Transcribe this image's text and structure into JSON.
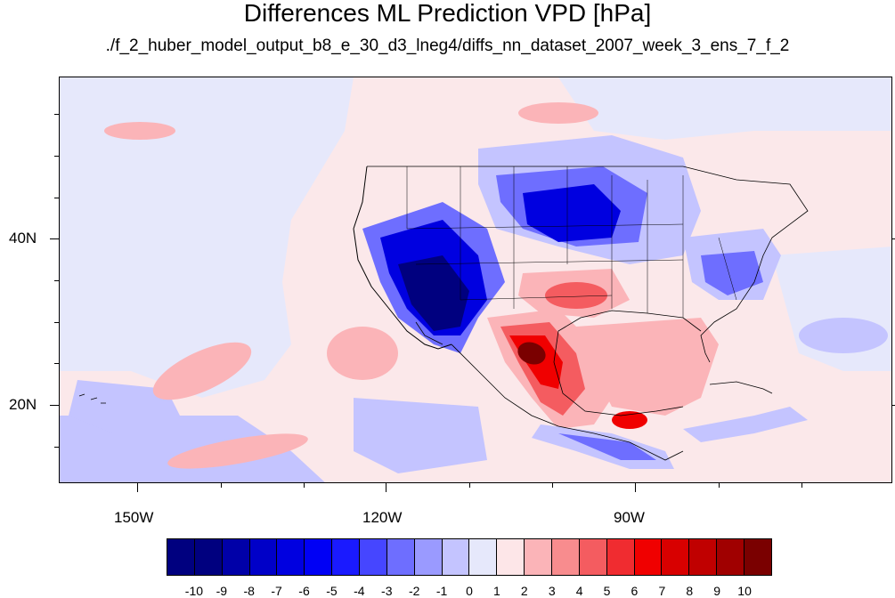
{
  "title": "Differences ML Prediction VPD [hPa]",
  "subtitle": "./f_2_huber_model_output_b8_e_30_d3_lneg4/diffs_nn_dataset_2007_week_3_ens_7_f_2",
  "axes": {
    "lat_labels": [
      "40N",
      "20N"
    ],
    "lon_labels": [
      "150W",
      "120W",
      "90W"
    ]
  },
  "colorbar": {
    "labels": [
      "-10",
      "-9",
      "-8",
      "-7",
      "-6",
      "-5",
      "-4",
      "-3",
      "-2",
      "-1",
      "0",
      "1",
      "2",
      "3",
      "4",
      "5",
      "6",
      "7",
      "8",
      "9",
      "10"
    ],
    "colors": [
      "#00007f",
      "#0000a8",
      "#0000c8",
      "#0000e0",
      "#0000f5",
      "#1a1aff",
      "#4646ff",
      "#6e6eff",
      "#9a9aff",
      "#c4c4ff",
      "#e6e8fb",
      "#fde6e8",
      "#fbb4b8",
      "#f88c8e",
      "#f45c60",
      "#f02c30",
      "#f00000",
      "#d80000",
      "#c00000",
      "#a00000",
      "#7a0000"
    ]
  },
  "palette": {
    "background_neutral_pos": "#fbe8ea",
    "neutral_neg": "#e6e8fb",
    "light_blue": "#c4c4ff",
    "mid_blue": "#6e6eff",
    "strong_blue": "#0000e0",
    "deep_blue": "#00007f",
    "light_red": "#fbb4b8",
    "mid_red": "#f45c60",
    "strong_red": "#f00000",
    "deep_red": "#7a0000",
    "coastline": "#000000"
  }
}
